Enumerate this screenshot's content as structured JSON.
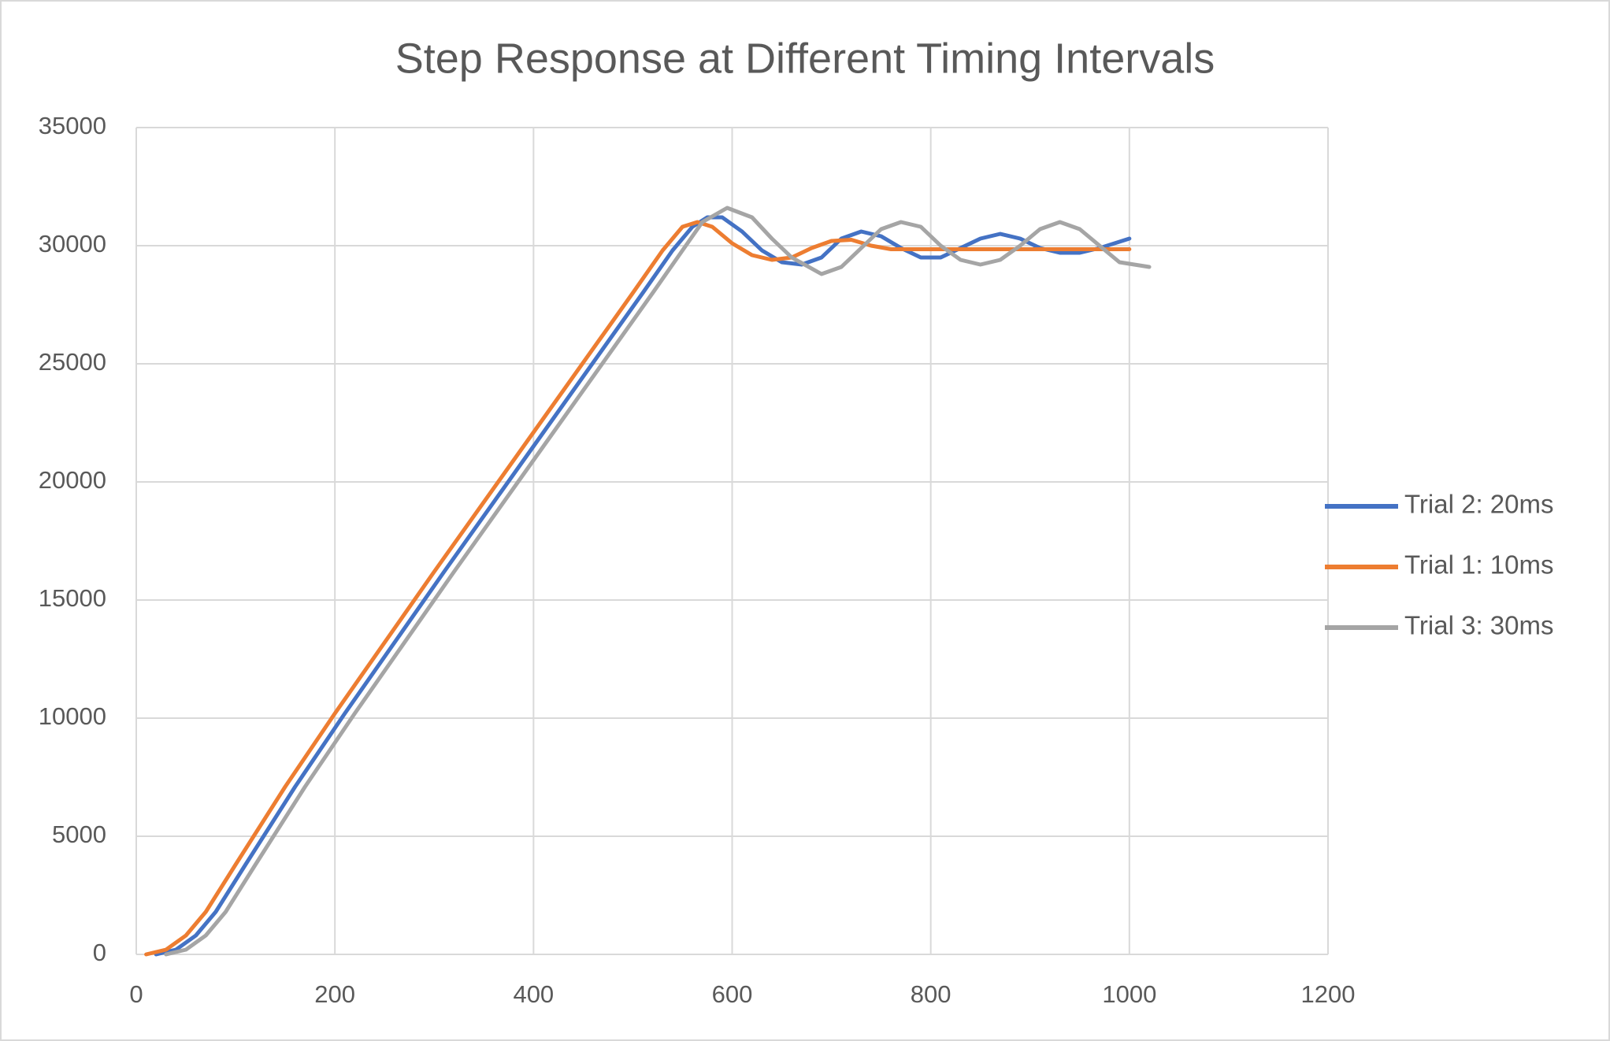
{
  "chart_data": {
    "type": "line",
    "title": "Step Response at Different Timing Intervals",
    "xlim": [
      0,
      1200
    ],
    "xticks": [
      0,
      200,
      400,
      600,
      800,
      1000,
      1200
    ],
    "ylim": [
      0,
      35000
    ],
    "yticks": [
      0,
      5000,
      10000,
      15000,
      20000,
      25000,
      30000,
      35000
    ],
    "grid": true,
    "legend": "right",
    "series": [
      {
        "name": "Trial 2: 20ms",
        "color": "#4472c4",
        "x": [
          20,
          40,
          60,
          80,
          110,
          160,
          210,
          310,
          410,
          510,
          540,
          560,
          575,
          590,
          610,
          630,
          650,
          670,
          690,
          710,
          730,
          750,
          770,
          790,
          810,
          830,
          850,
          870,
          890,
          910,
          930,
          950,
          970,
          1000
        ],
        "values": [
          0,
          200,
          800,
          1800,
          3800,
          7100,
          10200,
          16200,
          22100,
          28000,
          29800,
          30800,
          31200,
          31200,
          30600,
          29800,
          29300,
          29200,
          29500,
          30300,
          30600,
          30400,
          29900,
          29500,
          29500,
          29900,
          30300,
          30500,
          30300,
          29900,
          29700,
          29700,
          29900,
          30300
        ]
      },
      {
        "name": "Trial 1: 10ms",
        "color": "#ed7d31",
        "x": [
          10,
          30,
          50,
          70,
          100,
          150,
          200,
          300,
          400,
          500,
          530,
          550,
          565,
          580,
          600,
          620,
          640,
          660,
          680,
          700,
          720,
          740,
          760,
          800,
          900,
          1000
        ],
        "values": [
          0,
          200,
          800,
          1800,
          3800,
          7100,
          10200,
          16200,
          22100,
          28000,
          29800,
          30800,
          31000,
          30800,
          30100,
          29600,
          29400,
          29500,
          29900,
          30200,
          30250,
          30000,
          29850,
          29850,
          29850,
          29850
        ]
      },
      {
        "name": "Trial 3: 30ms",
        "color": "#a5a5a5",
        "x": [
          30,
          50,
          70,
          90,
          120,
          170,
          220,
          320,
          420,
          520,
          550,
          570,
          595,
          620,
          640,
          660,
          690,
          710,
          730,
          750,
          770,
          790,
          810,
          830,
          850,
          870,
          890,
          910,
          930,
          950,
          970,
          990,
          1020
        ],
        "values": [
          0,
          200,
          800,
          1800,
          3800,
          7100,
          10200,
          16200,
          22100,
          28000,
          29800,
          31000,
          31600,
          31200,
          30300,
          29500,
          28800,
          29100,
          29900,
          30700,
          31000,
          30800,
          30000,
          29400,
          29200,
          29400,
          30000,
          30700,
          31000,
          30700,
          30000,
          29300,
          29100
        ]
      }
    ]
  }
}
